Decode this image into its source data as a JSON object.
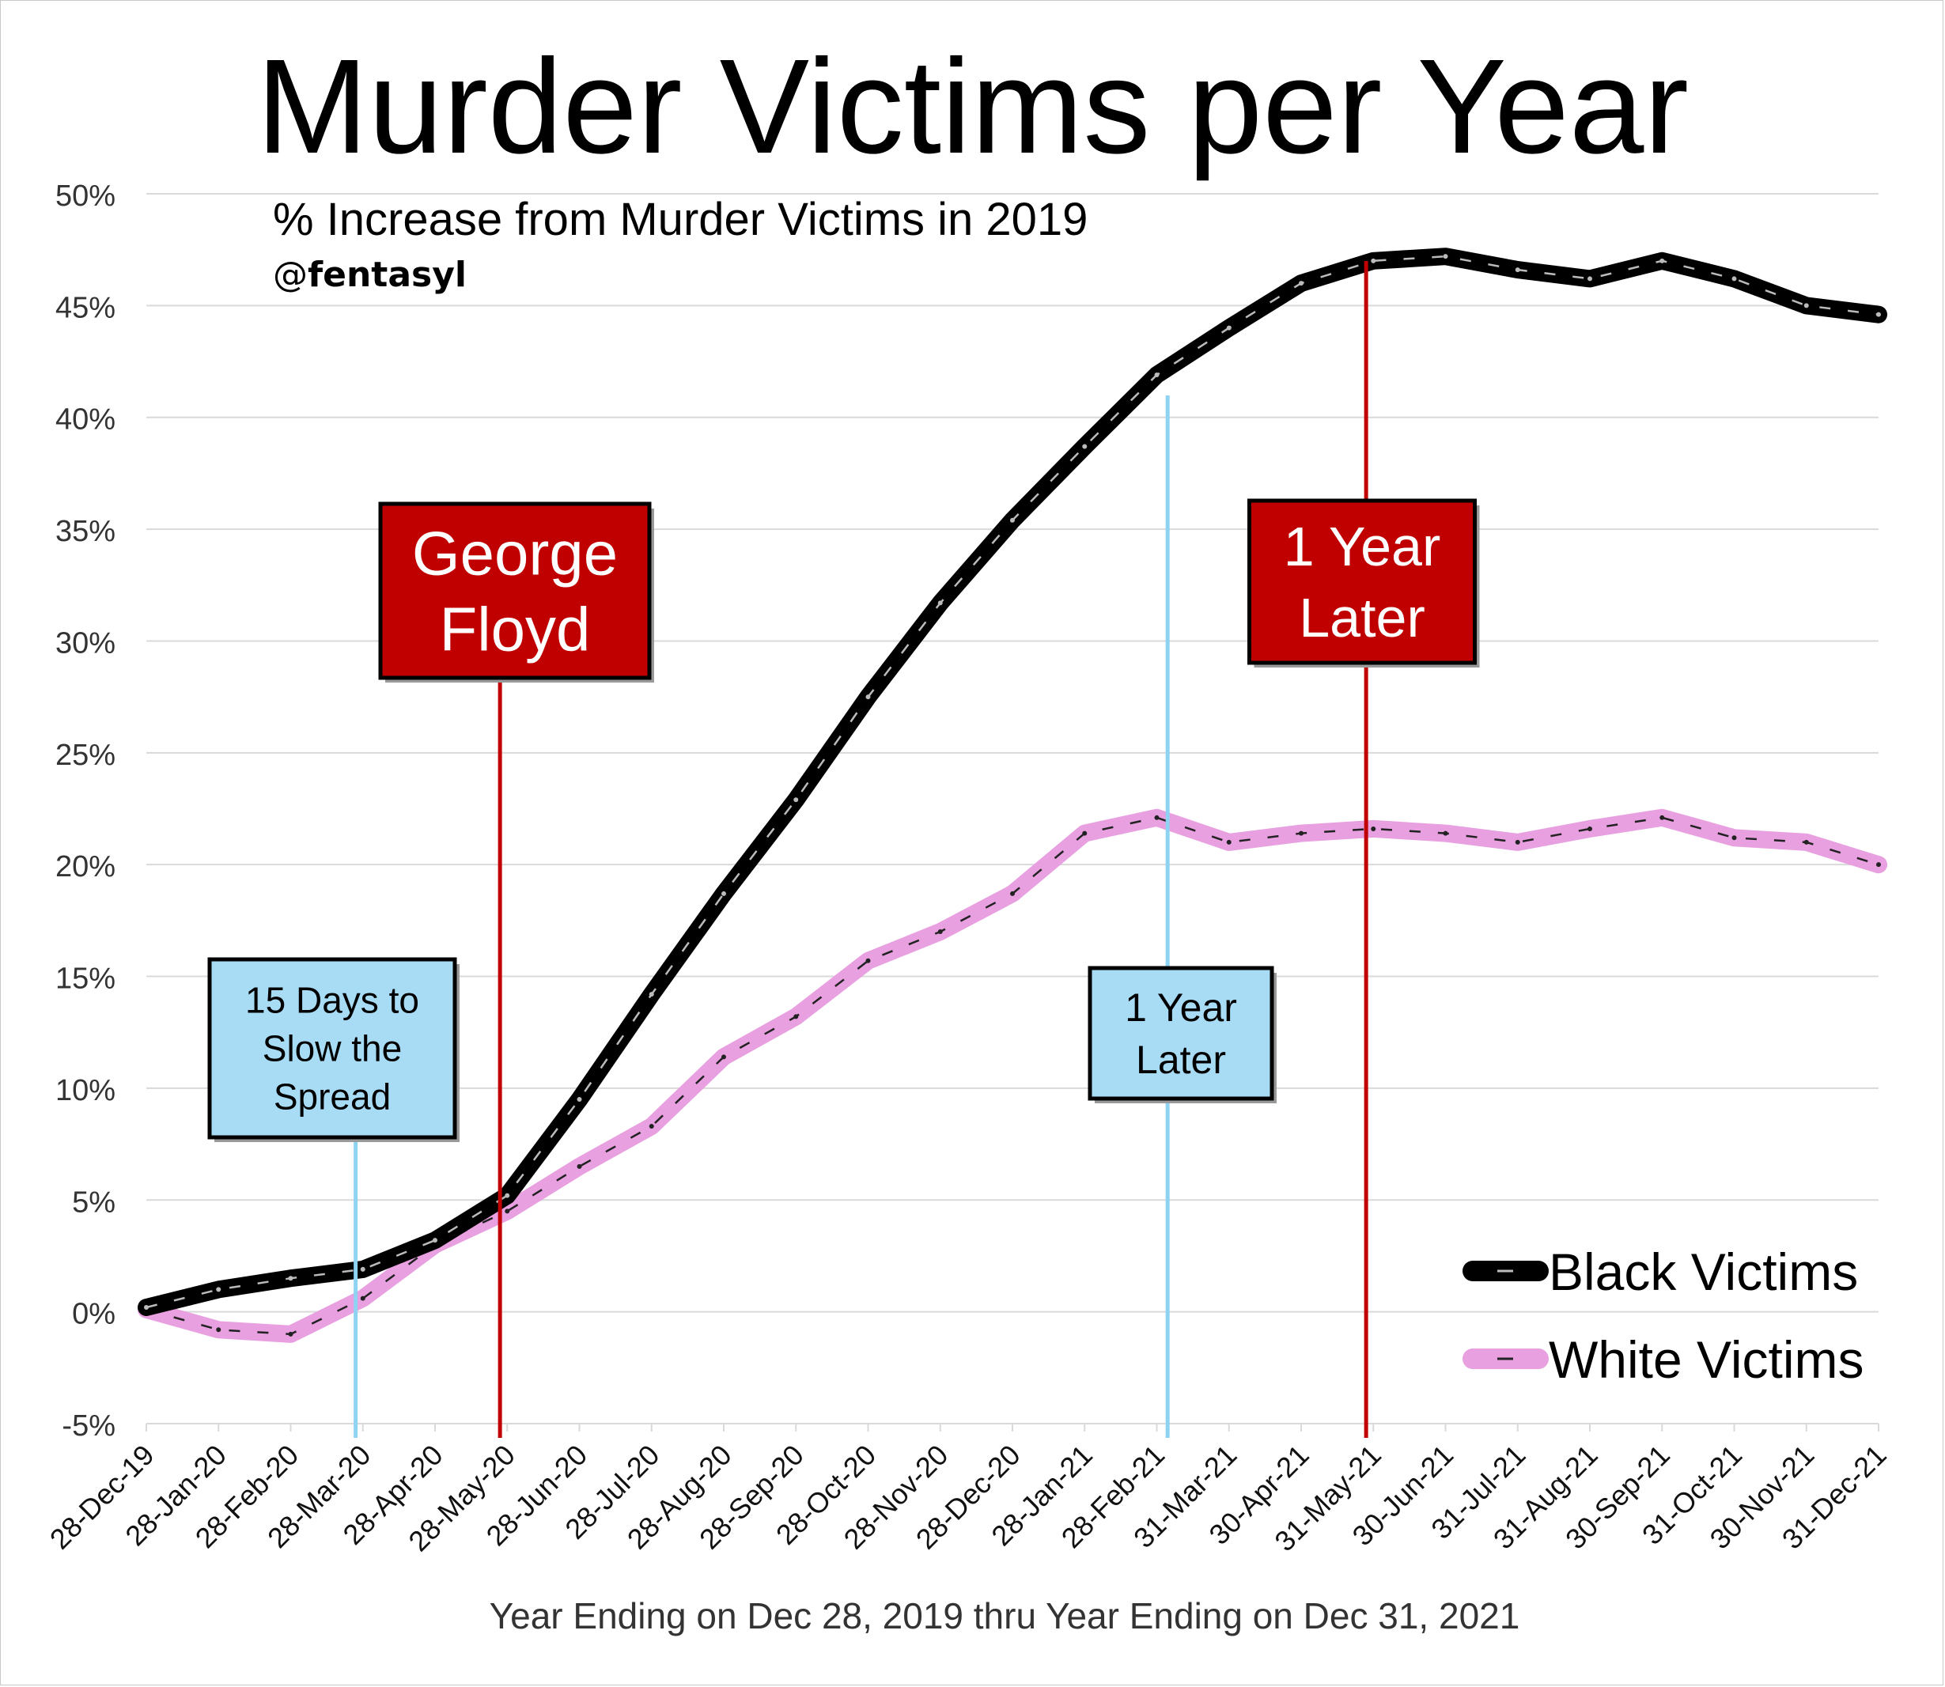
{
  "chart_data": {
    "type": "line",
    "title": "Murder Victims per Year",
    "subtitle": "% Increase from Murder Victims in 2019",
    "credit_prefix": "@",
    "credit_name": "fentasyl",
    "xlabel": "Year Ending on Dec 28, 2019 thru Year Ending on Dec 31, 2021",
    "ylabel": "",
    "ylim": [
      -5,
      50
    ],
    "y_ticks": [
      -5,
      0,
      5,
      10,
      15,
      20,
      25,
      30,
      35,
      40,
      45,
      50
    ],
    "y_tick_labels": [
      "-5%",
      "0%",
      "5%",
      "10%",
      "15%",
      "20%",
      "25%",
      "30%",
      "35%",
      "40%",
      "45%",
      "50%"
    ],
    "x_tick_labels": [
      "28-Dec-19",
      "28-Jan-20",
      "28-Feb-20",
      "28-Mar-20",
      "28-Apr-20",
      "28-May-20",
      "28-Jun-20",
      "28-Jul-20",
      "28-Aug-20",
      "28-Sep-20",
      "28-Oct-20",
      "28-Nov-20",
      "28-Dec-20",
      "28-Jan-21",
      "28-Feb-21",
      "31-Mar-21",
      "30-Apr-21",
      "31-May-21",
      "30-Jun-21",
      "31-Jul-21",
      "31-Aug-21",
      "30-Sep-21",
      "31-Oct-21",
      "30-Nov-21",
      "31-Dec-21"
    ],
    "x": [
      "28-Dec-19",
      "28-Jan-20",
      "28-Feb-20",
      "28-Mar-20",
      "28-Apr-20",
      "28-May-20",
      "28-Jun-20",
      "28-Jul-20",
      "28-Aug-20",
      "28-Sep-20",
      "28-Oct-20",
      "28-Nov-20",
      "28-Dec-20",
      "28-Jan-21",
      "28-Feb-21",
      "31-Mar-21",
      "30-Apr-21",
      "31-May-21",
      "30-Jun-21",
      "31-Jul-21",
      "31-Aug-21",
      "30-Sep-21",
      "31-Oct-21",
      "30-Nov-21",
      "31-Dec-21"
    ],
    "grid": true,
    "legend_position": "bottom-right",
    "series": [
      {
        "name": "Black Victims",
        "color": "#000000",
        "values": [
          0.2,
          1.0,
          1.5,
          1.9,
          3.2,
          5.2,
          9.5,
          14.2,
          18.7,
          22.9,
          27.5,
          31.7,
          35.4,
          38.7,
          41.9,
          44.0,
          46.0,
          47.0,
          47.2,
          46.6,
          46.2,
          47.0,
          46.2,
          45.0,
          44.6
        ]
      },
      {
        "name": "White Victims",
        "color": "#e8a0e0",
        "values": [
          0.1,
          -0.8,
          -1.0,
          0.6,
          3.0,
          4.5,
          6.5,
          8.3,
          11.4,
          13.2,
          15.7,
          17.0,
          18.7,
          21.4,
          22.1,
          21.0,
          21.4,
          21.6,
          21.4,
          21.0,
          21.6,
          22.1,
          21.2,
          21.0,
          20.0
        ]
      }
    ],
    "annotations": [
      {
        "label": "15 Days to Slow the Spread",
        "lines": [
          "15 Days to",
          "Slow the",
          "Spread"
        ],
        "x_index": 2.9,
        "fill": "#a8dcf5",
        "line_color": "#8fd3f2"
      },
      {
        "label": "George Floyd",
        "lines": [
          "George",
          "Floyd"
        ],
        "x_index": 4.9,
        "fill": "#c00000",
        "line_color": "#c00000"
      },
      {
        "label": "1 Year Later",
        "lines": [
          "1 Year",
          "Later"
        ],
        "x_index": 14.15,
        "fill": "#a8dcf5",
        "line_color": "#8fd3f2"
      },
      {
        "label": "1 Year Later",
        "lines": [
          "1 Year",
          "Later"
        ],
        "x_index": 16.9,
        "fill": "#c00000",
        "line_color": "#c00000"
      }
    ]
  }
}
